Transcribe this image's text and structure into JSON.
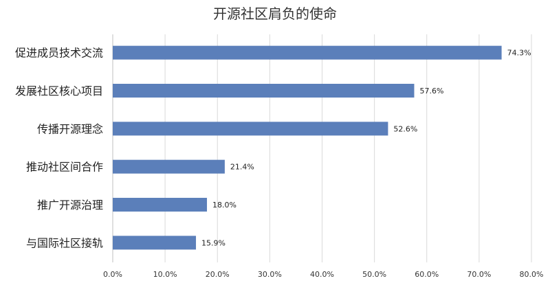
{
  "chart_data": {
    "type": "bar",
    "orientation": "horizontal",
    "title": "开源社区肩负的使命",
    "xlabel": "",
    "ylabel": "",
    "categories": [
      "促进成员技术交流",
      "发展社区核心项目",
      "传播开源理念",
      "推动社区间合作",
      "推广开源治理",
      "与国际社区接轨"
    ],
    "values": [
      74.3,
      57.6,
      52.6,
      21.4,
      18.0,
      15.9
    ],
    "value_labels": [
      "74.3%",
      "57.6%",
      "52.6%",
      "21.4%",
      "18.0%",
      "15.9%"
    ],
    "xlim": [
      0,
      80
    ],
    "ticks": [
      0,
      10,
      20,
      30,
      40,
      50,
      60,
      70,
      80
    ],
    "tick_labels": [
      "0.0%",
      "10.0%",
      "20.0%",
      "30.0%",
      "40.0%",
      "50.0%",
      "60.0%",
      "70.0%",
      "80.0%"
    ],
    "grid": true,
    "legend": "none",
    "bar_color": "#5b7fba"
  }
}
